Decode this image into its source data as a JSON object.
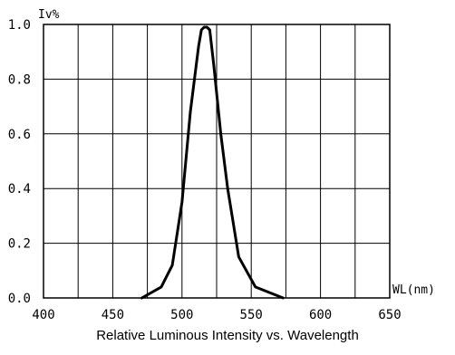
{
  "chart_data": {
    "type": "line",
    "title": "Relative Luminous Intensity vs. Wavelength",
    "xlabel": "WL(nm)",
    "ylabel": "Iv%",
    "xlim": [
      400,
      650
    ],
    "ylim": [
      0,
      1.0
    ],
    "x_ticks": [
      "400",
      "450",
      "500",
      "550",
      "600",
      "650"
    ],
    "y_ticks": [
      "0.0",
      "0.2",
      "0.4",
      "0.6",
      "0.8",
      "1.0"
    ],
    "x_grid_step": 25,
    "y_grid_step": 0.2,
    "grid": true,
    "series": [
      {
        "x": [
          471,
          485,
          493,
          500,
          506,
          512,
          514,
          516,
          518,
          520,
          523,
          528,
          533,
          541,
          553,
          573
        ],
        "y": [
          0.0,
          0.04,
          0.12,
          0.35,
          0.68,
          0.92,
          0.98,
          0.99,
          0.99,
          0.98,
          0.85,
          0.6,
          0.4,
          0.15,
          0.04,
          0.0
        ]
      }
    ]
  }
}
